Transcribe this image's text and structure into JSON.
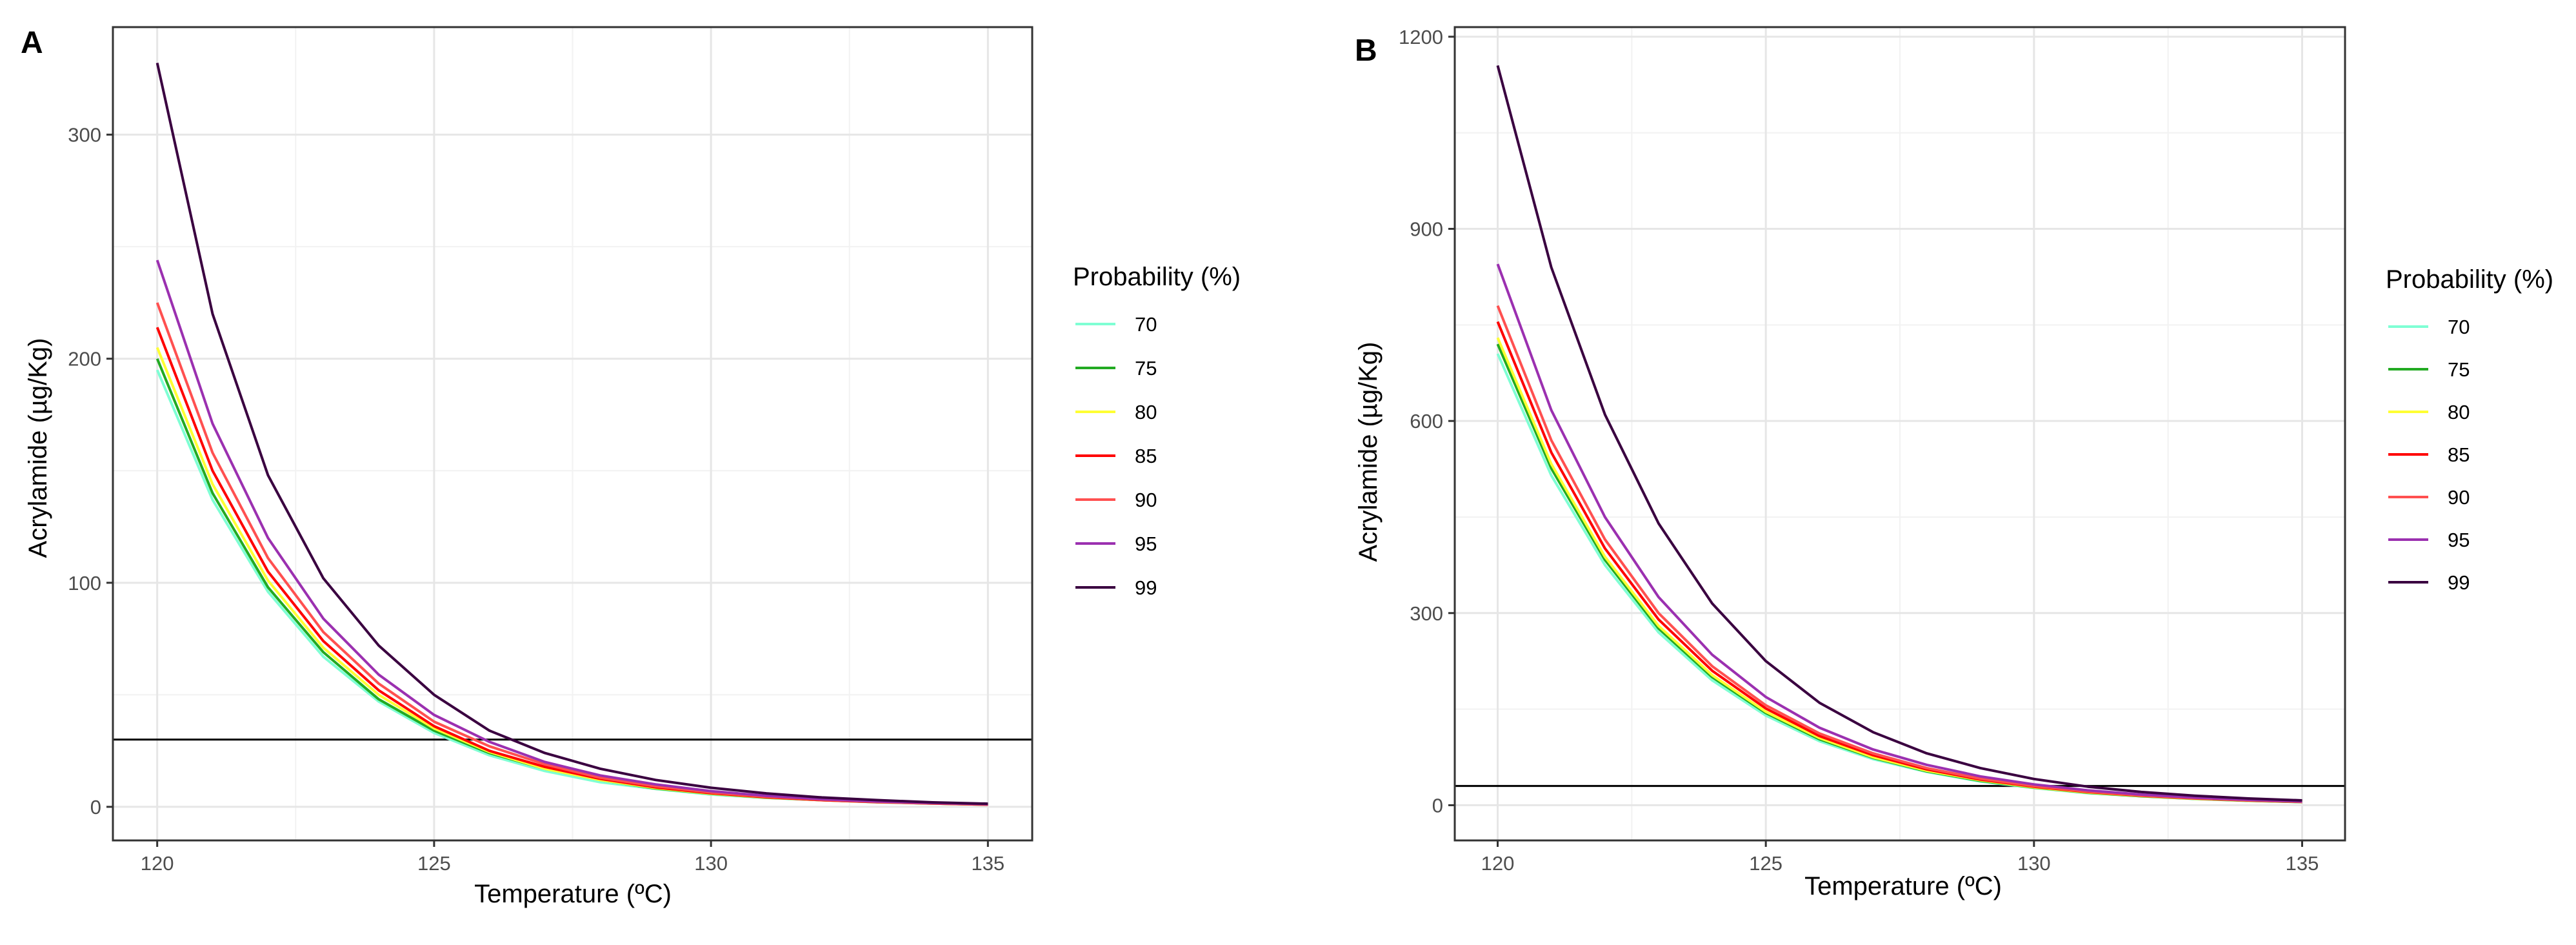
{
  "chart_data": [
    {
      "panel_label": "A",
      "type": "line",
      "xlabel": "Temperature (ºC)",
      "ylabel": "Acrylamide (µg/Kg)",
      "xlim": [
        119.2,
        135.8
      ],
      "ylim": [
        -15,
        348
      ],
      "x_ticks": [
        120,
        125,
        130,
        135
      ],
      "y_ticks": [
        0,
        100,
        200,
        300
      ],
      "grid": true,
      "legend": {
        "title": "Probability (%)",
        "position": "right"
      },
      "hline": 30,
      "x": [
        120,
        121,
        122,
        123,
        124,
        125,
        126,
        127,
        128,
        129,
        130,
        131,
        132,
        133,
        134,
        135
      ],
      "series": [
        {
          "name": "70",
          "color": "#7FFFD4",
          "values": [
            195,
            137,
            96,
            67,
            47,
            33,
            23,
            16,
            11,
            8,
            5.5,
            4,
            3,
            2,
            1.5,
            1
          ]
        },
        {
          "name": "75",
          "color": "#22AA22",
          "values": [
            200,
            140,
            98,
            69,
            48,
            34,
            24,
            17,
            12,
            8.2,
            5.8,
            4.1,
            3,
            2.1,
            1.5,
            1
          ]
        },
        {
          "name": "80",
          "color": "#FFFF33",
          "values": [
            205,
            144,
            101,
            71,
            50,
            35,
            24.5,
            17,
            12,
            8.4,
            5.9,
            4.2,
            3,
            2.1,
            1.5,
            1
          ]
        },
        {
          "name": "85",
          "color": "#FF0000",
          "values": [
            214,
            150,
            105,
            74,
            52,
            36,
            25,
            17.8,
            12.5,
            8.7,
            6.1,
            4.3,
            3,
            2.1,
            1.5,
            1
          ]
        },
        {
          "name": "90",
          "color": "#FF5050",
          "values": [
            225,
            158,
            111,
            78,
            55,
            38,
            27,
            19,
            13,
            9.2,
            6.4,
            4.5,
            3.2,
            2.2,
            1.6,
            1.1
          ]
        },
        {
          "name": "95",
          "color": "#9B30B0",
          "values": [
            244,
            171,
            120,
            84,
            59,
            41,
            29,
            20,
            14,
            10,
            7,
            4.9,
            3.4,
            2.4,
            1.7,
            1.2
          ]
        },
        {
          "name": "99",
          "color": "#3A0040",
          "values": [
            332,
            220,
            148,
            102,
            72,
            50,
            34,
            24,
            17,
            12,
            8.5,
            6,
            4.2,
            3,
            2,
            1.4
          ]
        }
      ]
    },
    {
      "panel_label": "B",
      "type": "line",
      "xlabel": "Temperature (ºC)",
      "ylabel": "Acrylamide (µg/Kg)",
      "xlim": [
        119.2,
        135.8
      ],
      "ylim": [
        -55,
        1215
      ],
      "x_ticks": [
        120,
        125,
        130,
        135
      ],
      "y_ticks": [
        0,
        300,
        600,
        900,
        1200
      ],
      "grid": true,
      "legend": {
        "title": "Probability (%)",
        "position": "right"
      },
      "hline": 30,
      "x": [
        120,
        121,
        122,
        123,
        124,
        125,
        126,
        127,
        128,
        129,
        130,
        131,
        132,
        133,
        134,
        135
      ],
      "series": [
        {
          "name": "70",
          "color": "#7FFFD4",
          "values": [
            705,
            515,
            375,
            270,
            195,
            140,
            100,
            72,
            52,
            37,
            27,
            19,
            14,
            10,
            7,
            5
          ]
        },
        {
          "name": "75",
          "color": "#22AA22",
          "values": [
            720,
            526,
            383,
            276,
            200,
            144,
            103,
            74,
            53,
            38,
            27.5,
            19.5,
            14,
            10,
            7,
            5
          ]
        },
        {
          "name": "80",
          "color": "#FFFF33",
          "values": [
            730,
            533,
            388,
            280,
            203,
            146,
            105,
            75,
            54,
            39,
            28,
            20,
            14.5,
            10.3,
            7.3,
            5.2
          ]
        },
        {
          "name": "85",
          "color": "#FF0000",
          "values": [
            755,
            551,
            401,
            290,
            210,
            151,
            108,
            78,
            56,
            40,
            29,
            20.7,
            15,
            10.6,
            7.5,
            5.3
          ]
        },
        {
          "name": "90",
          "color": "#FF5050",
          "values": [
            780,
            570,
            415,
            300,
            217,
            156,
            112,
            81,
            58,
            41.5,
            30,
            21.4,
            15.4,
            11,
            7.8,
            5.5
          ]
        },
        {
          "name": "95",
          "color": "#9B30B0",
          "values": [
            845,
            617,
            450,
            325,
            235,
            169,
            121,
            87,
            63,
            45,
            32.5,
            23.2,
            16.7,
            11.9,
            8.5,
            6
          ]
        },
        {
          "name": "99",
          "color": "#3A0040",
          "values": [
            1155,
            840,
            610,
            440,
            315,
            225,
            160,
            114,
            81,
            58,
            41,
            29,
            20.7,
            14.8,
            10.5,
            7.5
          ]
        }
      ]
    }
  ]
}
